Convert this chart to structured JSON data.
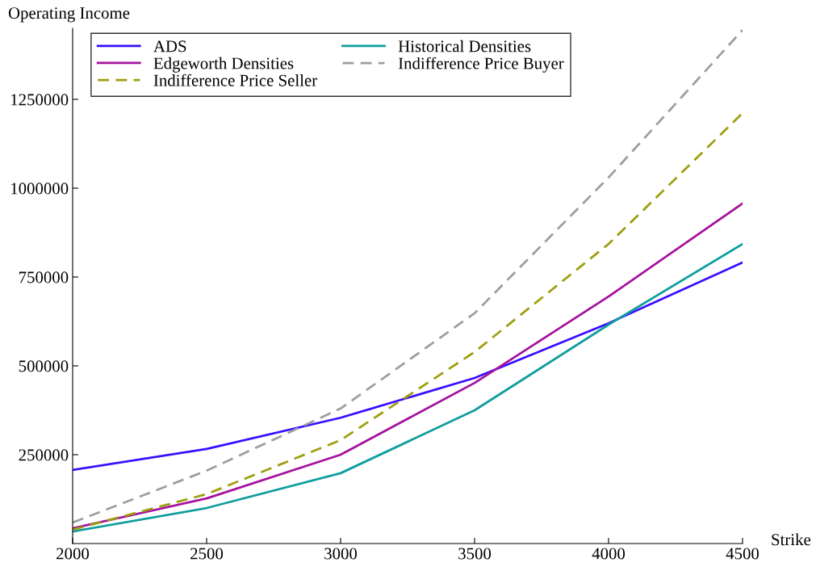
{
  "chart_data": {
    "type": "line",
    "xlabel": "Strike",
    "ylabel": "Operating Income",
    "x": [
      2000,
      2500,
      3000,
      3500,
      4000,
      4500
    ],
    "xlim": [
      2000,
      4500
    ],
    "xticks": [
      2000,
      2500,
      3000,
      3500,
      4000,
      4500
    ],
    "ylim": [
      0,
      1450000
    ],
    "yticks": [
      250000,
      500000,
      750000,
      1000000,
      1250000
    ],
    "grid": false,
    "legend": "top left",
    "series": [
      {
        "name": "ADS",
        "color": "#3b0eff",
        "line_style": "solid",
        "values": [
          207000,
          266000,
          354000,
          466000,
          620000,
          791000
        ]
      },
      {
        "name": "Historical Densities",
        "color": "#119e9e",
        "line_style": "solid",
        "values": [
          34000,
          100000,
          198000,
          375000,
          616000,
          843000
        ]
      },
      {
        "name": "Edgeworth Densities",
        "color": "#a5119e",
        "line_style": "solid",
        "values": [
          43000,
          127000,
          250000,
          452000,
          695000,
          957000
        ]
      },
      {
        "name": "Indifference Price Buyer",
        "color": "#9e9e9e",
        "line_style": "dashed",
        "values": [
          59000,
          205000,
          380000,
          648000,
          1030000,
          1445000
        ]
      },
      {
        "name": "Indifference Price Seller",
        "color": "#9e9e11",
        "line_style": "dashed",
        "values": [
          39000,
          139000,
          291000,
          539000,
          843000,
          1211000
        ]
      }
    ]
  }
}
